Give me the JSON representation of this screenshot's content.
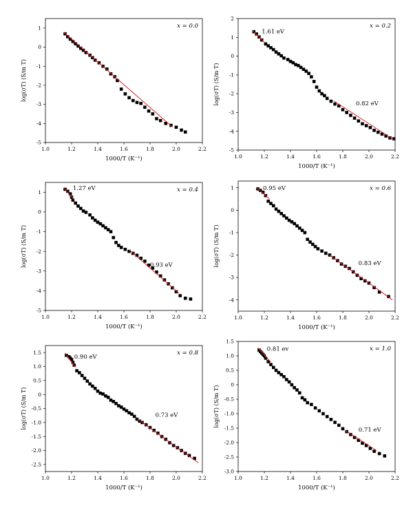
{
  "chart_data": [
    {
      "type": "scatter",
      "panel_label": "x = 0.0",
      "xlabel": "1000/T (K⁻¹)",
      "ylabel": "log(σT) (S/m T)",
      "xlim": [
        1.0,
        2.2
      ],
      "ylim": [
        -5,
        1.5
      ],
      "xticks": [
        "1.0",
        "1.2",
        "1.4",
        "1.6",
        "1.8",
        "2.0",
        "2.2"
      ],
      "yticks": [
        "-5",
        "-4",
        "-3",
        "-2",
        "-1",
        "0",
        "1"
      ],
      "x": [
        1.15,
        1.17,
        1.19,
        1.21,
        1.23,
        1.25,
        1.27,
        1.29,
        1.31,
        1.34,
        1.36,
        1.38,
        1.41,
        1.44,
        1.47,
        1.5,
        1.53,
        1.55,
        1.58,
        1.61,
        1.64,
        1.67,
        1.7,
        1.73,
        1.76,
        1.79,
        1.82,
        1.85,
        1.88,
        1.92,
        1.96,
        2.0,
        2.04,
        2.07
      ],
      "y": [
        0.7,
        0.55,
        0.42,
        0.3,
        0.18,
        0.06,
        -0.06,
        -0.16,
        -0.28,
        -0.42,
        -0.55,
        -0.68,
        -0.82,
        -1.0,
        -1.15,
        -1.4,
        -1.55,
        -1.75,
        -2.2,
        -2.45,
        -2.65,
        -2.8,
        -2.9,
        -2.95,
        -3.15,
        -3.35,
        -3.5,
        -3.75,
        -3.85,
        -4.0,
        -4.1,
        -4.2,
        -4.35,
        -4.45
      ],
      "fits": [
        {
          "x": [
            1.14,
            1.97
          ],
          "y": [
            0.78,
            -4.18
          ]
        }
      ],
      "annotations": []
    },
    {
      "type": "scatter",
      "panel_label": "x = 0.2",
      "xlabel": "1000/T (K⁻¹)",
      "ylabel": "log(σT) (S/m T)",
      "xlim": [
        1.0,
        2.2
      ],
      "ylim": [
        -5,
        2
      ],
      "xticks": [
        "1.0",
        "1.2",
        "1.4",
        "1.6",
        "1.8",
        "2.0",
        "2.2"
      ],
      "yticks": [
        "-5",
        "-4",
        "-3",
        "-2",
        "-1",
        "0",
        "1",
        "2"
      ],
      "x": [
        1.12,
        1.14,
        1.16,
        1.18,
        1.21,
        1.23,
        1.25,
        1.27,
        1.29,
        1.31,
        1.33,
        1.35,
        1.38,
        1.4,
        1.42,
        1.44,
        1.46,
        1.48,
        1.5,
        1.52,
        1.54,
        1.56,
        1.58,
        1.6,
        1.62,
        1.64,
        1.66,
        1.68,
        1.71,
        1.74,
        1.77,
        1.8,
        1.83,
        1.86,
        1.89,
        1.92,
        1.95,
        1.98,
        2.01,
        2.04,
        2.07,
        2.1,
        2.13,
        2.16,
        2.19
      ],
      "y": [
        1.3,
        1.18,
        1.02,
        0.86,
        0.65,
        0.55,
        0.45,
        0.35,
        0.22,
        0.12,
        0.02,
        -0.1,
        -0.18,
        -0.28,
        -0.35,
        -0.45,
        -0.5,
        -0.6,
        -0.7,
        -0.8,
        -0.92,
        -1.1,
        -1.35,
        -1.65,
        -1.85,
        -2.0,
        -2.1,
        -2.25,
        -2.4,
        -2.55,
        -2.65,
        -2.85,
        -3.0,
        -3.15,
        -3.3,
        -3.45,
        -3.6,
        -3.7,
        -3.8,
        -3.95,
        -4.05,
        -4.15,
        -4.25,
        -4.35,
        -4.4
      ],
      "fits": [
        {
          "x": [
            1.11,
            1.2
          ],
          "y": [
            1.35,
            0.74
          ]
        },
        {
          "x": [
            1.73,
            2.19
          ],
          "y": [
            -2.38,
            -4.45
          ]
        }
      ],
      "annotations": [
        {
          "text": "1.61 eV",
          "x": 1.18,
          "y": 1.22
        },
        {
          "text": "0.82 eV",
          "x": 1.9,
          "y": -2.62
        }
      ]
    },
    {
      "type": "scatter",
      "panel_label": "x = 0.4",
      "xlabel": "1000/T (K⁻¹)",
      "ylabel": "log(σT) (S/m T)",
      "xlim": [
        1.0,
        2.2
      ],
      "ylim": [
        -5,
        1.5
      ],
      "xticks": [
        "1.0",
        "1.2",
        "1.4",
        "1.6",
        "1.8",
        "2.0",
        "2.2"
      ],
      "yticks": [
        "-5",
        "-4",
        "-3",
        "-2",
        "-1",
        "0",
        "1"
      ],
      "x": [
        1.15,
        1.17,
        1.19,
        1.2,
        1.21,
        1.23,
        1.25,
        1.27,
        1.29,
        1.31,
        1.34,
        1.36,
        1.38,
        1.4,
        1.42,
        1.44,
        1.46,
        1.48,
        1.5,
        1.52,
        1.54,
        1.56,
        1.58,
        1.61,
        1.64,
        1.67,
        1.7,
        1.73,
        1.76,
        1.79,
        1.82,
        1.85,
        1.88,
        1.91,
        1.94,
        1.97,
        2.0,
        2.03,
        2.07,
        2.11
      ],
      "y": [
        1.15,
        1.05,
        0.92,
        0.75,
        0.6,
        0.45,
        0.3,
        0.18,
        0.05,
        -0.02,
        -0.15,
        -0.3,
        -0.42,
        -0.52,
        -0.6,
        -0.7,
        -0.8,
        -0.9,
        -1.0,
        -1.3,
        -1.55,
        -1.7,
        -1.8,
        -1.9,
        -2.0,
        -2.1,
        -2.2,
        -2.35,
        -2.5,
        -2.7,
        -2.85,
        -3.05,
        -3.25,
        -3.45,
        -3.65,
        -3.85,
        -4.05,
        -4.25,
        -4.38,
        -4.42
      ],
      "fits": [
        {
          "x": [
            1.14,
            1.22
          ],
          "y": [
            1.22,
            0.62
          ]
        },
        {
          "x": [
            1.64,
            2.02
          ],
          "y": [
            -1.92,
            -4.12
          ]
        }
      ],
      "annotations": [
        {
          "text": "1.27 eV",
          "x": 1.21,
          "y": 1.12
        },
        {
          "text": "0.93 eV",
          "x": 1.8,
          "y": -2.78
        }
      ]
    },
    {
      "type": "scatter",
      "panel_label": "x = 0.6",
      "xlabel": "1000/T (K⁻¹)",
      "ylabel": "log(σT) (S/m T)",
      "xlim": [
        1.0,
        2.2
      ],
      "ylim": [
        -4.5,
        1.3
      ],
      "xticks": [
        "1.0",
        "1.2",
        "1.4",
        "1.6",
        "1.8",
        "2.0",
        "2.2"
      ],
      "yticks": [
        "-4",
        "-3",
        "-2",
        "-1",
        "0",
        "1"
      ],
      "x": [
        1.15,
        1.17,
        1.19,
        1.21,
        1.23,
        1.25,
        1.27,
        1.29,
        1.31,
        1.33,
        1.35,
        1.37,
        1.39,
        1.41,
        1.43,
        1.45,
        1.47,
        1.49,
        1.51,
        1.53,
        1.55,
        1.57,
        1.59,
        1.61,
        1.64,
        1.67,
        1.7,
        1.73,
        1.76,
        1.79,
        1.82,
        1.85,
        1.88,
        1.91,
        1.94,
        1.97,
        2.0,
        2.04,
        2.08,
        2.15
      ],
      "y": [
        0.95,
        0.88,
        0.8,
        0.65,
        0.4,
        0.3,
        0.2,
        0.05,
        -0.05,
        -0.15,
        -0.25,
        -0.35,
        -0.45,
        -0.52,
        -0.6,
        -0.7,
        -0.8,
        -0.9,
        -1.0,
        -1.3,
        -1.42,
        -1.52,
        -1.62,
        -1.72,
        -1.82,
        -1.92,
        -2.0,
        -2.12,
        -2.25,
        -2.4,
        -2.5,
        -2.6,
        -2.75,
        -2.9,
        -3.05,
        -3.15,
        -3.25,
        -3.45,
        -3.65,
        -3.85
      ],
      "fits": [
        {
          "x": [
            1.14,
            1.24
          ],
          "y": [
            1.02,
            0.5
          ]
        },
        {
          "x": [
            1.7,
            2.18
          ],
          "y": [
            -2.0,
            -4.0
          ]
        }
      ],
      "annotations": [
        {
          "text": "0.95 eV",
          "x": 1.19,
          "y": 0.9
        },
        {
          "text": "0.83 eV",
          "x": 1.92,
          "y": -2.45
        }
      ]
    },
    {
      "type": "scatter",
      "panel_label": "x = 0.8",
      "xlabel": "1000/T (K⁻¹)",
      "ylabel": "log(σT) (S/m T)",
      "xlim": [
        1.0,
        2.2
      ],
      "ylim": [
        -2.75,
        1.75
      ],
      "xticks": [
        "1.0",
        "1.2",
        "1.4",
        "1.6",
        "1.8",
        "2.0",
        "2.2"
      ],
      "yticks": [
        "-2.5",
        "-2.0",
        "-1.5",
        "-1.0",
        "-0.5",
        "0",
        "0.5",
        "1.0",
        "1.5"
      ],
      "x": [
        1.16,
        1.18,
        1.19,
        1.2,
        1.21,
        1.22,
        1.24,
        1.26,
        1.28,
        1.3,
        1.32,
        1.34,
        1.36,
        1.38,
        1.4,
        1.42,
        1.44,
        1.46,
        1.48,
        1.5,
        1.52,
        1.54,
        1.56,
        1.58,
        1.6,
        1.62,
        1.64,
        1.66,
        1.68,
        1.7,
        1.72,
        1.74,
        1.77,
        1.8,
        1.83,
        1.86,
        1.89,
        1.92,
        1.95,
        1.98,
        2.01,
        2.04,
        2.07,
        2.1,
        2.14
      ],
      "y": [
        1.4,
        1.35,
        1.3,
        1.25,
        1.15,
        1.05,
        0.85,
        0.78,
        0.68,
        0.58,
        0.48,
        0.38,
        0.3,
        0.22,
        0.12,
        0.05,
        0.02,
        -0.05,
        -0.1,
        -0.2,
        -0.25,
        -0.32,
        -0.4,
        -0.45,
        -0.52,
        -0.58,
        -0.65,
        -0.7,
        -0.78,
        -0.88,
        -0.95,
        -1.0,
        -1.08,
        -1.18,
        -1.28,
        -1.38,
        -1.5,
        -1.6,
        -1.72,
        -1.82,
        -1.9,
        -2.0,
        -2.1,
        -2.18,
        -2.28
      ],
      "fits": [
        {
          "x": [
            1.15,
            1.23
          ],
          "y": [
            1.48,
            0.98
          ]
        },
        {
          "x": [
            1.7,
            2.17
          ],
          "y": [
            -0.86,
            -2.44
          ]
        }
      ],
      "annotations": [
        {
          "text": "0.90 eV",
          "x": 1.22,
          "y": 1.28
        },
        {
          "text": "0.73 eV",
          "x": 1.84,
          "y": -0.8
        }
      ]
    },
    {
      "type": "scatter",
      "panel_label": "x = 1.0",
      "xlabel": "1000/T (K⁻¹)",
      "ylabel": "log(σT) (S/m T)",
      "xlim": [
        1.0,
        2.2
      ],
      "ylim": [
        -3.0,
        1.5
      ],
      "xticks": [
        "1.0",
        "1.2",
        "1.4",
        "1.6",
        "1.8",
        "2.0",
        "2.2"
      ],
      "yticks": [
        "-3.0",
        "-2.5",
        "-2.0",
        "-1.5",
        "-1.0",
        "-0.5",
        "0",
        "0.5",
        "1.0",
        "1.5"
      ],
      "x": [
        1.16,
        1.17,
        1.18,
        1.19,
        1.2,
        1.21,
        1.23,
        1.25,
        1.27,
        1.29,
        1.31,
        1.33,
        1.35,
        1.37,
        1.39,
        1.41,
        1.43,
        1.45,
        1.47,
        1.49,
        1.51,
        1.53,
        1.56,
        1.59,
        1.62,
        1.65,
        1.68,
        1.71,
        1.74,
        1.77,
        1.8,
        1.83,
        1.86,
        1.89,
        1.92,
        1.95,
        1.98,
        2.01,
        2.04,
        2.08,
        2.12
      ],
      "y": [
        1.2,
        1.15,
        1.1,
        1.05,
        1.0,
        0.92,
        0.8,
        0.7,
        0.6,
        0.5,
        0.42,
        0.35,
        0.28,
        0.18,
        0.1,
        0.0,
        -0.1,
        -0.18,
        -0.28,
        -0.45,
        -0.52,
        -0.62,
        -0.68,
        -0.8,
        -0.9,
        -1.0,
        -1.1,
        -1.2,
        -1.3,
        -1.4,
        -1.52,
        -1.62,
        -1.72,
        -1.82,
        -1.92,
        -2.02,
        -2.1,
        -2.2,
        -2.3,
        -2.38,
        -2.46
      ],
      "fits": [
        {
          "x": [
            1.15,
            1.25
          ],
          "y": [
            1.28,
            0.78
          ]
        },
        {
          "x": [
            1.82,
            2.06
          ],
          "y": [
            -1.58,
            -2.28
          ]
        }
      ],
      "annotations": [
        {
          "text": "0.81 ev",
          "x": 1.22,
          "y": 1.18
        },
        {
          "text": "0.71 eV",
          "x": 1.92,
          "y": -1.62
        }
      ]
    }
  ]
}
